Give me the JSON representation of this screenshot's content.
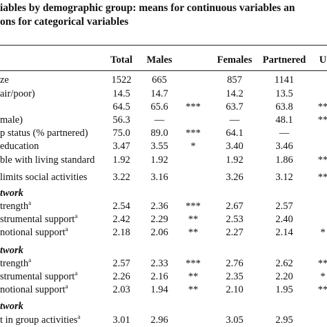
{
  "title": [
    "iables by demographic group: means for continuous variables an",
    "ons for categorical variables"
  ],
  "table": {
    "header": [
      "Total",
      "Males",
      null,
      "Females",
      "Partnered",
      "U"
    ],
    "rows": [
      {
        "label": "ze",
        "cells": [
          "1522",
          "665",
          null,
          "857",
          "1141",
          null
        ]
      },
      {
        "label": "air/poor)",
        "cells": [
          "14.5",
          "14.7",
          null,
          "14.2",
          "13.5",
          null
        ]
      },
      {
        "label": null,
        "cells": [
          "64.5",
          "65.6",
          "***",
          "63.7",
          "63.8",
          "**"
        ]
      },
      {
        "label": "male)",
        "cells": [
          "56.3",
          "—",
          null,
          "—",
          "48.1",
          "**"
        ]
      },
      {
        "label": "p status (% partnered)",
        "cells": [
          "75.0",
          "89.0",
          "***",
          "64.1",
          "—",
          null
        ]
      },
      {
        "label": "education",
        "cells": [
          "3.47",
          "3.55",
          "*",
          "3.40",
          "3.46",
          null
        ]
      },
      {
        "label": "ble with living standard",
        "cells": [
          "1.92",
          "1.92",
          null,
          "1.92",
          "1.86",
          "**"
        ]
      },
      {
        "label": "limits social activities",
        "cells": [
          "3.22",
          "3.16",
          null,
          "3.26",
          "3.12",
          "**"
        ]
      },
      {
        "section": "twork"
      },
      {
        "label": "trength",
        "sup": "a",
        "cells": [
          "2.54",
          "2.36",
          "***",
          "2.67",
          "2.57",
          null
        ]
      },
      {
        "label": "strumental support",
        "sup": "a",
        "cells": [
          "2.42",
          "2.29",
          "**",
          "2.53",
          "2.40",
          null
        ]
      },
      {
        "label": "notional support",
        "sup": "a",
        "cells": [
          "2.18",
          "2.06",
          "**",
          "2.27",
          "2.14",
          "*"
        ]
      },
      {
        "section": "twork"
      },
      {
        "label": "trength",
        "sup": "a",
        "cells": [
          "2.57",
          "2.33",
          "***",
          "2.76",
          "2.62",
          "**"
        ]
      },
      {
        "label": "strumental support",
        "sup": "a",
        "cells": [
          "2.26",
          "2.16",
          "**",
          "2.35",
          "2.20",
          "*"
        ]
      },
      {
        "label": "notional support",
        "sup": "a",
        "cells": [
          "2.03",
          "1.94",
          "**",
          "2.10",
          "1.95",
          "**"
        ]
      },
      {
        "section": "twork"
      },
      {
        "label": "t in group activities",
        "sup": "a",
        "cells": [
          "3.01",
          "2.96",
          null,
          "3.05",
          "2.95",
          null
        ]
      }
    ]
  }
}
